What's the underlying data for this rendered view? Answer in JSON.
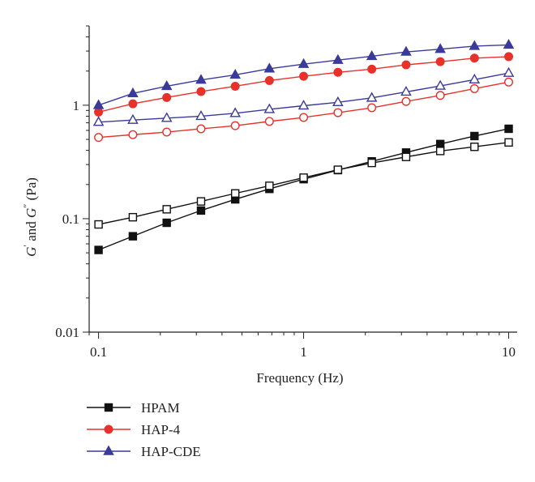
{
  "chart_data": {
    "type": "line",
    "title": "",
    "xlabel": "Frequency (Hz)",
    "ylabel": {
      "prefix_G": "G",
      "sup1": "′",
      "middle": " and ",
      "prefix_G2": "G",
      "sup2": "″",
      "unit": " (Pa)"
    },
    "xscale": "log",
    "yscale": "log",
    "xlim": [
      0.09,
      11
    ],
    "ylim": [
      0.01,
      5
    ],
    "xticks": [
      {
        "value": 0.1,
        "label": "0.1"
      },
      {
        "value": 1,
        "label": "1"
      },
      {
        "value": 10,
        "label": "10"
      }
    ],
    "yticks": [
      {
        "value": 0.01,
        "label": "0.01"
      },
      {
        "value": 0.1,
        "label": "0.1"
      },
      {
        "value": 1,
        "label": "1"
      }
    ],
    "x": [
      0.1,
      0.147,
      0.215,
      0.316,
      0.464,
      0.681,
      1.0,
      1.47,
      2.15,
      3.16,
      4.64,
      6.81,
      10.0
    ],
    "series": [
      {
        "id": "hpam_gp",
        "name": "HPAM",
        "color": "#111111",
        "marker": "square",
        "filled": true,
        "legend": true,
        "values": [
          0.053,
          0.07,
          0.092,
          0.118,
          0.148,
          0.183,
          0.223,
          0.268,
          0.32,
          0.383,
          0.455,
          0.535,
          0.62
        ]
      },
      {
        "id": "hpam_gpp",
        "name": "",
        "color": "#111111",
        "marker": "square",
        "filled": false,
        "legend": false,
        "values": [
          0.089,
          0.103,
          0.121,
          0.142,
          0.167,
          0.195,
          0.23,
          0.27,
          0.31,
          0.35,
          0.395,
          0.43,
          0.47
        ]
      },
      {
        "id": "hap4_gp",
        "name": "HAP-4",
        "color": "#e8312a",
        "marker": "circle",
        "filled": true,
        "legend": true,
        "values": [
          0.87,
          1.03,
          1.17,
          1.32,
          1.47,
          1.65,
          1.8,
          1.95,
          2.08,
          2.27,
          2.42,
          2.6,
          2.68
        ]
      },
      {
        "id": "hap4_gpp",
        "name": "",
        "color": "#e8312a",
        "marker": "circle",
        "filled": false,
        "legend": false,
        "values": [
          0.52,
          0.55,
          0.58,
          0.62,
          0.66,
          0.72,
          0.78,
          0.86,
          0.95,
          1.08,
          1.22,
          1.4,
          1.6
        ]
      },
      {
        "id": "hapcde_gp",
        "name": "HAP-CDE",
        "color": "#3a3a9a",
        "marker": "triangle",
        "filled": true,
        "legend": true,
        "values": [
          1.0,
          1.27,
          1.47,
          1.67,
          1.85,
          2.1,
          2.3,
          2.5,
          2.7,
          2.95,
          3.12,
          3.32,
          3.4
        ]
      },
      {
        "id": "hapcde_gpp",
        "name": "",
        "color": "#3a3a9a",
        "marker": "triangle",
        "filled": false,
        "legend": false,
        "values": [
          0.71,
          0.74,
          0.77,
          0.8,
          0.85,
          0.92,
          0.99,
          1.06,
          1.16,
          1.31,
          1.48,
          1.68,
          1.92
        ]
      }
    ],
    "legend": {
      "position": "bottom-left"
    },
    "grid": false
  }
}
